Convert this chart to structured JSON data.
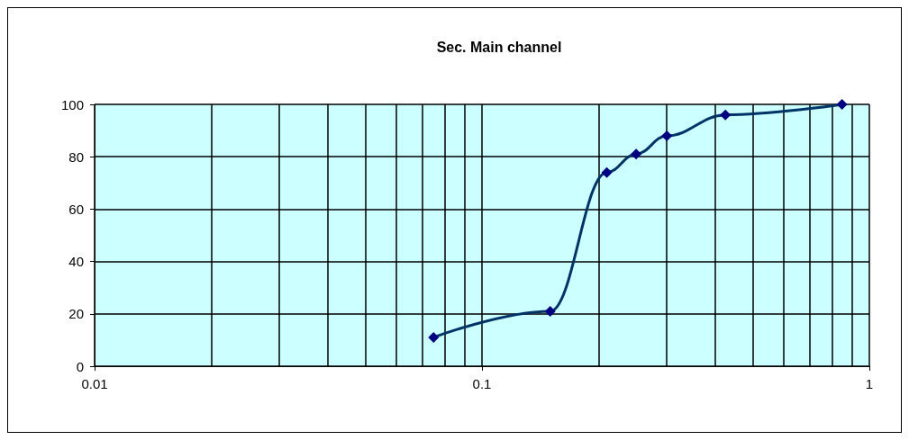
{
  "chart_data": {
    "type": "line",
    "title": "Sec. Main channel",
    "x": [
      0.075,
      0.15,
      0.21,
      0.25,
      0.3,
      0.425,
      0.85
    ],
    "series": [
      {
        "color": "#003366",
        "values": [
          11,
          21,
          74,
          81,
          88,
          96,
          100
        ]
      }
    ],
    "marker": "diamond",
    "line_style": "solid",
    "log": "x",
    "grid": true,
    "xlim": [
      0.01,
      1
    ],
    "xticks": [
      0.01,
      {
        "value": 0.02,
        "label": null
      },
      {
        "value": 0.03,
        "label": null
      },
      {
        "value": 0.04,
        "label": null
      },
      {
        "value": 0.05,
        "label": null
      },
      {
        "value": 0.06,
        "label": null
      },
      {
        "value": 0.07,
        "label": null
      },
      {
        "value": 0.08,
        "label": null
      },
      {
        "value": 0.09,
        "label": null
      },
      0.1,
      {
        "value": 0.2,
        "label": null
      },
      {
        "value": 0.3,
        "label": null
      },
      {
        "value": 0.4,
        "label": null
      },
      {
        "value": 0.5,
        "label": null
      },
      {
        "value": 0.6,
        "label": null
      },
      {
        "value": 0.7,
        "label": null
      },
      {
        "value": 0.8,
        "label": null
      },
      {
        "value": 0.9,
        "label": null
      },
      1
    ],
    "ylim": [
      0,
      100
    ],
    "yticks": [
      0,
      20,
      40,
      60,
      80,
      100
    ]
  }
}
